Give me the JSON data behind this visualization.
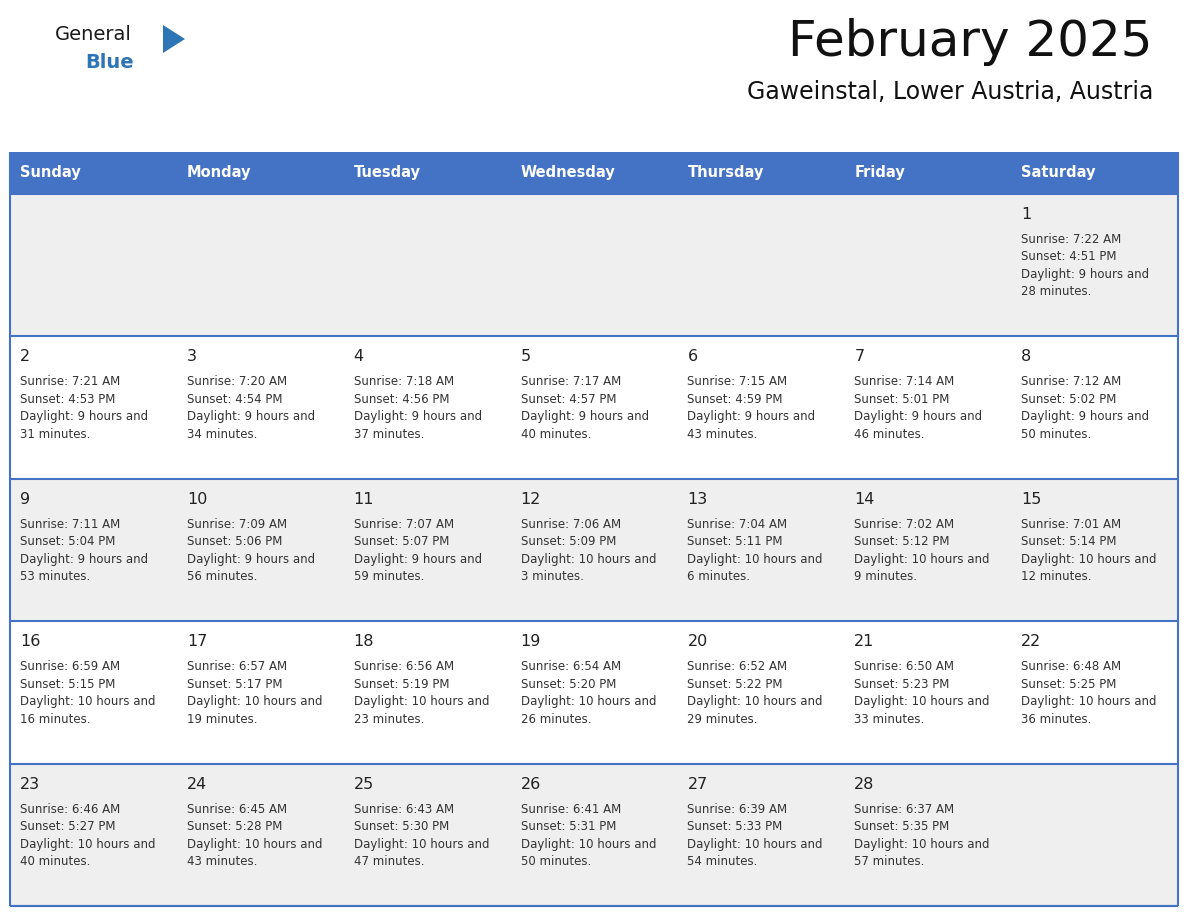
{
  "title": "February 2025",
  "subtitle": "Gaweinstal, Lower Austria, Austria",
  "header_bg": "#4472C4",
  "header_text": "#FFFFFF",
  "day_headers": [
    "Sunday",
    "Monday",
    "Tuesday",
    "Wednesday",
    "Thursday",
    "Friday",
    "Saturday"
  ],
  "title_font_size": 36,
  "subtitle_font_size": 17,
  "cell_bg_odd": "#EFEFEF",
  "cell_bg_even": "#FFFFFF",
  "cell_text_color": "#333333",
  "day_num_color": "#222222",
  "border_color": "#4472C4",
  "logo_general_color": "#1a1a1a",
  "logo_blue_color": "#2E75B6",
  "calendar_data": {
    "1": {
      "sunrise": "7:22 AM",
      "sunset": "4:51 PM",
      "daylight": "9 hours and 28 minutes."
    },
    "2": {
      "sunrise": "7:21 AM",
      "sunset": "4:53 PM",
      "daylight": "9 hours and 31 minutes."
    },
    "3": {
      "sunrise": "7:20 AM",
      "sunset": "4:54 PM",
      "daylight": "9 hours and 34 minutes."
    },
    "4": {
      "sunrise": "7:18 AM",
      "sunset": "4:56 PM",
      "daylight": "9 hours and 37 minutes."
    },
    "5": {
      "sunrise": "7:17 AM",
      "sunset": "4:57 PM",
      "daylight": "9 hours and 40 minutes."
    },
    "6": {
      "sunrise": "7:15 AM",
      "sunset": "4:59 PM",
      "daylight": "9 hours and 43 minutes."
    },
    "7": {
      "sunrise": "7:14 AM",
      "sunset": "5:01 PM",
      "daylight": "9 hours and 46 minutes."
    },
    "8": {
      "sunrise": "7:12 AM",
      "sunset": "5:02 PM",
      "daylight": "9 hours and 50 minutes."
    },
    "9": {
      "sunrise": "7:11 AM",
      "sunset": "5:04 PM",
      "daylight": "9 hours and 53 minutes."
    },
    "10": {
      "sunrise": "7:09 AM",
      "sunset": "5:06 PM",
      "daylight": "9 hours and 56 minutes."
    },
    "11": {
      "sunrise": "7:07 AM",
      "sunset": "5:07 PM",
      "daylight": "9 hours and 59 minutes."
    },
    "12": {
      "sunrise": "7:06 AM",
      "sunset": "5:09 PM",
      "daylight": "10 hours and 3 minutes."
    },
    "13": {
      "sunrise": "7:04 AM",
      "sunset": "5:11 PM",
      "daylight": "10 hours and 6 minutes."
    },
    "14": {
      "sunrise": "7:02 AM",
      "sunset": "5:12 PM",
      "daylight": "10 hours and 9 minutes."
    },
    "15": {
      "sunrise": "7:01 AM",
      "sunset": "5:14 PM",
      "daylight": "10 hours and 12 minutes."
    },
    "16": {
      "sunrise": "6:59 AM",
      "sunset": "5:15 PM",
      "daylight": "10 hours and 16 minutes."
    },
    "17": {
      "sunrise": "6:57 AM",
      "sunset": "5:17 PM",
      "daylight": "10 hours and 19 minutes."
    },
    "18": {
      "sunrise": "6:56 AM",
      "sunset": "5:19 PM",
      "daylight": "10 hours and 23 minutes."
    },
    "19": {
      "sunrise": "6:54 AM",
      "sunset": "5:20 PM",
      "daylight": "10 hours and 26 minutes."
    },
    "20": {
      "sunrise": "6:52 AM",
      "sunset": "5:22 PM",
      "daylight": "10 hours and 29 minutes."
    },
    "21": {
      "sunrise": "6:50 AM",
      "sunset": "5:23 PM",
      "daylight": "10 hours and 33 minutes."
    },
    "22": {
      "sunrise": "6:48 AM",
      "sunset": "5:25 PM",
      "daylight": "10 hours and 36 minutes."
    },
    "23": {
      "sunrise": "6:46 AM",
      "sunset": "5:27 PM",
      "daylight": "10 hours and 40 minutes."
    },
    "24": {
      "sunrise": "6:45 AM",
      "sunset": "5:28 PM",
      "daylight": "10 hours and 43 minutes."
    },
    "25": {
      "sunrise": "6:43 AM",
      "sunset": "5:30 PM",
      "daylight": "10 hours and 47 minutes."
    },
    "26": {
      "sunrise": "6:41 AM",
      "sunset": "5:31 PM",
      "daylight": "10 hours and 50 minutes."
    },
    "27": {
      "sunrise": "6:39 AM",
      "sunset": "5:33 PM",
      "daylight": "10 hours and 54 minutes."
    },
    "28": {
      "sunrise": "6:37 AM",
      "sunset": "5:35 PM",
      "daylight": "10 hours and 57 minutes."
    }
  }
}
